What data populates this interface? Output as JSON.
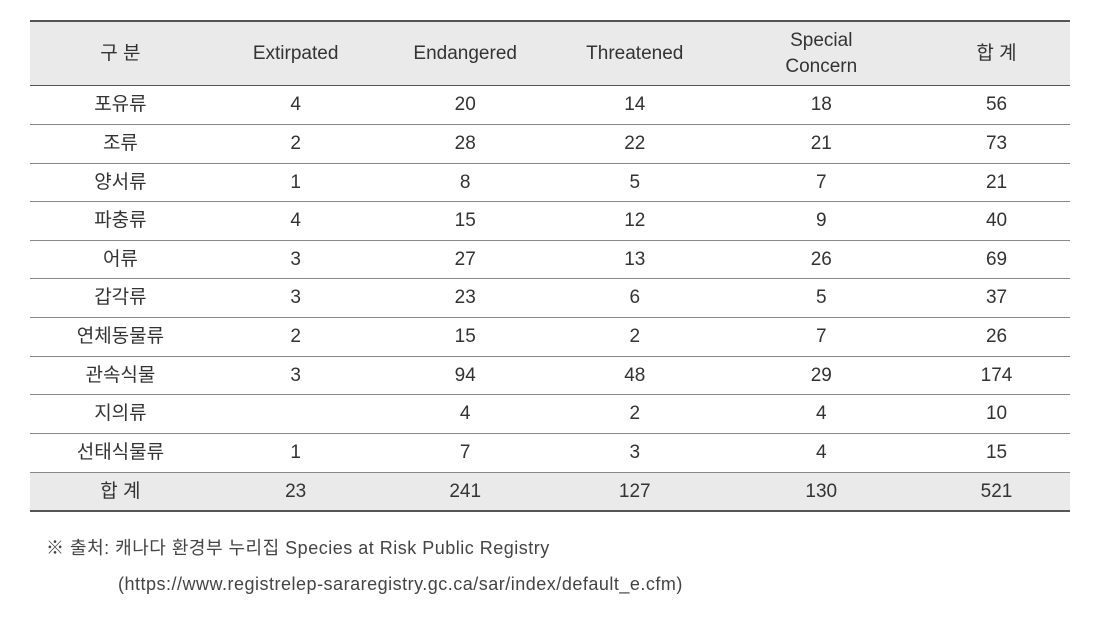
{
  "table": {
    "type": "table",
    "background_color": "#ffffff",
    "header_bg": "#eaeaea",
    "total_row_bg": "#eaeaea",
    "border_color_outer": "#555555",
    "border_color_inner": "#888888",
    "text_color": "#333333",
    "font_size_pt": 14,
    "column_widths_pct": [
      16,
      15,
      15,
      15,
      18,
      13
    ],
    "columns": [
      "구 분",
      "Extirpated",
      "Endangered",
      "Threatened",
      "Special\nConcern",
      "합 계"
    ],
    "rows": [
      [
        "포유류",
        "4",
        "20",
        "14",
        "18",
        "56"
      ],
      [
        "조류",
        "2",
        "28",
        "22",
        "21",
        "73"
      ],
      [
        "양서류",
        "1",
        "8",
        "5",
        "7",
        "21"
      ],
      [
        "파충류",
        "4",
        "15",
        "12",
        "9",
        "40"
      ],
      [
        "어류",
        "3",
        "27",
        "13",
        "26",
        "69"
      ],
      [
        "갑각류",
        "3",
        "23",
        "6",
        "5",
        "37"
      ],
      [
        "연체동물류",
        "2",
        "15",
        "2",
        "7",
        "26"
      ],
      [
        "관속식물",
        "3",
        "94",
        "48",
        "29",
        "174"
      ],
      [
        "지의류",
        "",
        "4",
        "2",
        "4",
        "10"
      ],
      [
        "선태식물류",
        "1",
        "7",
        "3",
        "4",
        "15"
      ],
      [
        "합 계",
        "23",
        "241",
        "127",
        "130",
        "521"
      ]
    ]
  },
  "footnote": {
    "symbol": "※",
    "source_label": "출처: 캐나다 환경부 누리집 Species at Risk Public Registry",
    "url": "(https://www.registrelep-sararegistry.gc.ca/sar/index/default_e.cfm)",
    "font_size_pt": 13,
    "text_color": "#444444"
  }
}
